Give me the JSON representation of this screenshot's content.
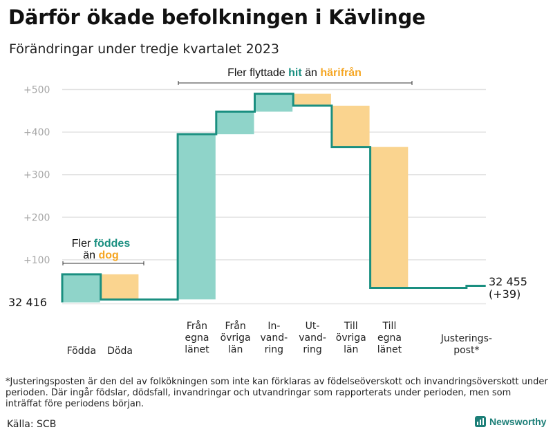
{
  "title": "Därför ökade befolkningen i Kävlinge",
  "subtitle": "Förändringar under tredje kvartalet 2023",
  "chart_data": {
    "type": "waterfall",
    "start_value": 32416,
    "start_label": "32  416",
    "end_label_value": "32 455",
    "end_label_change": "(+39)",
    "yticks": [
      100,
      200,
      300,
      400,
      500
    ],
    "ytick_labels": [
      "+100",
      "+200",
      "+300",
      "+400",
      "+500"
    ],
    "ylim": [
      -5,
      520
    ],
    "steps": [
      {
        "label_lines": [
          "Födda"
        ],
        "start": 0,
        "end": 66,
        "kind": "pos"
      },
      {
        "label_lines": [
          "Döda"
        ],
        "start": 66,
        "end": 7,
        "kind": "neg"
      },
      {
        "label_lines": [],
        "start": 7,
        "end": 7,
        "kind": "gap"
      },
      {
        "label_lines": [
          "Från",
          "egna",
          "länet"
        ],
        "start": 7,
        "end": 395,
        "kind": "pos"
      },
      {
        "label_lines": [
          "Från",
          "övriga",
          "län"
        ],
        "start": 395,
        "end": 448,
        "kind": "pos"
      },
      {
        "label_lines": [
          "In-",
          "vand-",
          "ring"
        ],
        "start": 448,
        "end": 490,
        "kind": "pos"
      },
      {
        "label_lines": [
          "Ut-",
          "vand-",
          "ring"
        ],
        "start": 490,
        "end": 462,
        "kind": "neg"
      },
      {
        "label_lines": [
          "Till",
          "övriga",
          "län"
        ],
        "start": 462,
        "end": 365,
        "kind": "neg"
      },
      {
        "label_lines": [
          "Till",
          "egna",
          "länet"
        ],
        "start": 365,
        "end": 34,
        "kind": "neg"
      },
      {
        "label_lines": [],
        "start": 34,
        "end": 34,
        "kind": "gap"
      },
      {
        "label_lines": [
          "Justerings-",
          "post*"
        ],
        "start": 34,
        "end": 39,
        "kind": "adj"
      }
    ],
    "annotations": {
      "births": {
        "prefix": "Fler",
        "highlight1": "föddes",
        "mid": "än",
        "highlight2": "dog"
      },
      "migration": {
        "prefix": "Fler flyttade",
        "highlight1": "hit",
        "mid": "än",
        "highlight2": "härifrån"
      }
    },
    "colors": {
      "positive": "#8fd4c9",
      "negative": "#fad48f",
      "line": "#1a8f80",
      "accent_pos": "#1a8f80",
      "accent_neg": "#f5a623",
      "grid": "#e3e3e3"
    }
  },
  "footnote": "*Justeringsposten är den del av folkökningen som inte kan förklaras av födelseöverskott och invandringsöverskott under perioden. Där ingår födslar, dödsfall, invandringar och utvandringar som rapporterats under perioden, men som inträffat före periodens början.",
  "source": "Källa: SCB",
  "logo_text": "Newsworthy"
}
